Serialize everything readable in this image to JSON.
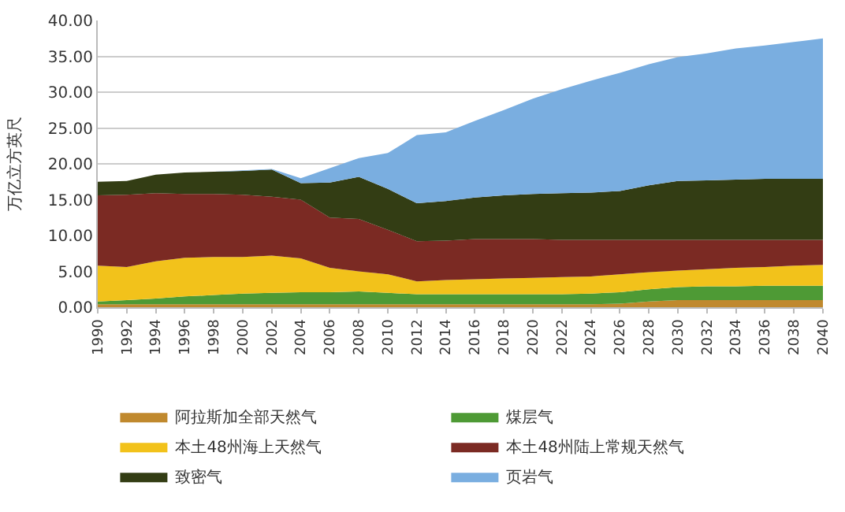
{
  "chart_data": {
    "type": "area",
    "stacked": true,
    "ylabel": "万亿立方英尺",
    "x": [
      1990,
      1992,
      1994,
      1996,
      1998,
      2000,
      2002,
      2004,
      2006,
      2008,
      2010,
      2012,
      2014,
      2016,
      2018,
      2020,
      2022,
      2024,
      2026,
      2028,
      2030,
      2032,
      2034,
      2036,
      2038,
      2040
    ],
    "xlim": [
      1990,
      2040
    ],
    "xticks": [
      1990,
      1992,
      1994,
      1996,
      1998,
      2000,
      2002,
      2004,
      2006,
      2008,
      2010,
      2012,
      2014,
      2016,
      2018,
      2020,
      2022,
      2024,
      2026,
      2028,
      2030,
      2032,
      2034,
      2036,
      2038,
      2040
    ],
    "ylim": [
      0,
      40
    ],
    "yticks": [
      {
        "value": 0,
        "label": "0.00"
      },
      {
        "value": 5,
        "label": "5.00"
      },
      {
        "value": 10,
        "label": "10.00"
      },
      {
        "value": 15,
        "label": "15.00"
      },
      {
        "value": 20,
        "label": "20.00"
      },
      {
        "value": 25,
        "label": "25.00"
      },
      {
        "value": 30,
        "label": "30.00"
      },
      {
        "value": 35,
        "label": "35.00"
      },
      {
        "value": 40,
        "label": "40.00"
      }
    ],
    "grid": "y",
    "legend": "bottom",
    "series": [
      {
        "name": "阿拉斯加全部天然气",
        "color": "#c0892e",
        "values": [
          0.4,
          0.4,
          0.4,
          0.4,
          0.4,
          0.4,
          0.4,
          0.4,
          0.4,
          0.4,
          0.4,
          0.4,
          0.4,
          0.4,
          0.4,
          0.4,
          0.4,
          0.4,
          0.5,
          0.8,
          1.0,
          1.0,
          1.0,
          1.0,
          1.0,
          1.0
        ]
      },
      {
        "name": "煤层气",
        "color": "#4e9a35",
        "values": [
          0.4,
          0.6,
          0.8,
          1.1,
          1.3,
          1.5,
          1.6,
          1.7,
          1.7,
          1.8,
          1.6,
          1.4,
          1.4,
          1.4,
          1.4,
          1.4,
          1.4,
          1.5,
          1.6,
          1.7,
          1.8,
          1.9,
          1.9,
          2.0,
          2.0,
          2.0
        ]
      },
      {
        "name": "本土48州海上天然气",
        "color": "#f2c21b",
        "values": [
          5.0,
          4.6,
          5.2,
          5.4,
          5.3,
          5.1,
          5.2,
          4.7,
          3.4,
          2.8,
          2.6,
          1.8,
          2.0,
          2.1,
          2.2,
          2.3,
          2.4,
          2.4,
          2.5,
          2.4,
          2.3,
          2.4,
          2.6,
          2.6,
          2.8,
          2.9
        ]
      },
      {
        "name": "本土48州陆上常规天然气",
        "color": "#7b2a23",
        "values": [
          9.8,
          10.1,
          9.5,
          8.9,
          8.8,
          8.7,
          8.2,
          8.2,
          7.0,
          7.3,
          6.2,
          5.6,
          5.5,
          5.6,
          5.5,
          5.4,
          5.2,
          5.1,
          4.8,
          4.5,
          4.3,
          4.1,
          3.9,
          3.8,
          3.6,
          3.5
        ]
      },
      {
        "name": "致密气",
        "color": "#333d14",
        "values": [
          1.9,
          1.9,
          2.6,
          3.0,
          3.1,
          3.3,
          3.8,
          2.3,
          4.9,
          5.9,
          5.7,
          5.3,
          5.5,
          5.8,
          6.1,
          6.3,
          6.5,
          6.6,
          6.8,
          7.6,
          8.2,
          8.3,
          8.4,
          8.5,
          8.5,
          8.5
        ]
      },
      {
        "name": "页岩气",
        "color": "#7aaee0",
        "values": [
          0,
          0,
          0,
          0,
          0,
          0.1,
          0.1,
          0.7,
          2.0,
          2.6,
          5.0,
          9.5,
          9.6,
          10.7,
          11.9,
          13.3,
          14.5,
          15.6,
          16.5,
          16.9,
          17.3,
          17.7,
          18.3,
          18.6,
          19.1,
          19.6
        ]
      }
    ]
  }
}
